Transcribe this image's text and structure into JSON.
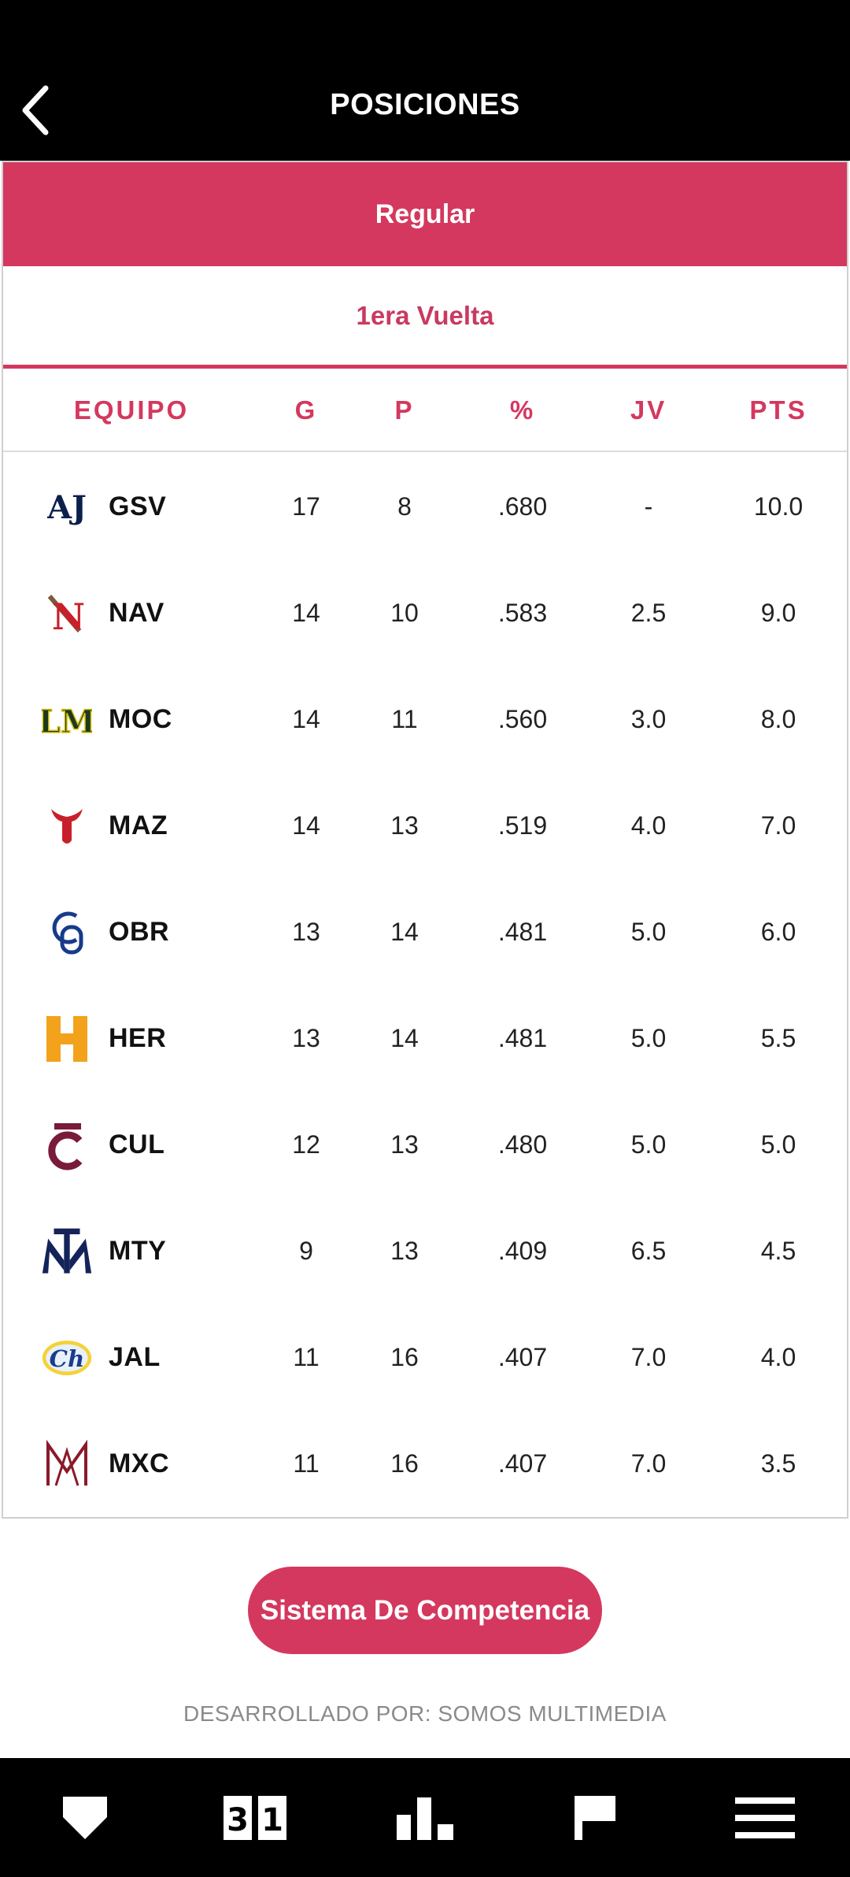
{
  "header": {
    "title": "POSICIONES",
    "back_icon": "chevron-left-icon"
  },
  "tabs": {
    "phase": "Regular",
    "round": "1era Vuelta"
  },
  "table": {
    "columns": [
      "EQUIPO",
      "G",
      "P",
      "%",
      "JV",
      "PTS"
    ],
    "rows": [
      {
        "team": "GSV",
        "g": "17",
        "p": "8",
        "pct": ".680",
        "jv": "-",
        "pts": "10.0"
      },
      {
        "team": "NAV",
        "g": "14",
        "p": "10",
        "pct": ".583",
        "jv": "2.5",
        "pts": "9.0"
      },
      {
        "team": "MOC",
        "g": "14",
        "p": "11",
        "pct": ".560",
        "jv": "3.0",
        "pts": "8.0"
      },
      {
        "team": "MAZ",
        "g": "14",
        "p": "13",
        "pct": ".519",
        "jv": "4.0",
        "pts": "7.0"
      },
      {
        "team": "OBR",
        "g": "13",
        "p": "14",
        "pct": ".481",
        "jv": "5.0",
        "pts": "6.0"
      },
      {
        "team": "HER",
        "g": "13",
        "p": "14",
        "pct": ".481",
        "jv": "5.0",
        "pts": "5.5"
      },
      {
        "team": "CUL",
        "g": "12",
        "p": "13",
        "pct": ".480",
        "jv": "5.0",
        "pts": "5.0"
      },
      {
        "team": "MTY",
        "g": "9",
        "p": "13",
        "pct": ".409",
        "jv": "6.5",
        "pts": "4.5"
      },
      {
        "team": "JAL",
        "g": "11",
        "p": "16",
        "pct": ".407",
        "jv": "7.0",
        "pts": "4.0"
      },
      {
        "team": "MXC",
        "g": "11",
        "p": "16",
        "pct": ".407",
        "jv": "7.0",
        "pts": "3.5"
      }
    ]
  },
  "competition_button": "Sistema De Competencia",
  "credits": "DESARROLLADO POR: SOMOS MULTIMEDIA",
  "bottom_nav": [
    "home-plate-icon",
    "scoreboard-icon",
    "standings-chart-icon",
    "flag-icon",
    "menu-icon"
  ],
  "colors": {
    "accent": "#d4385e",
    "bar": "#000000"
  }
}
